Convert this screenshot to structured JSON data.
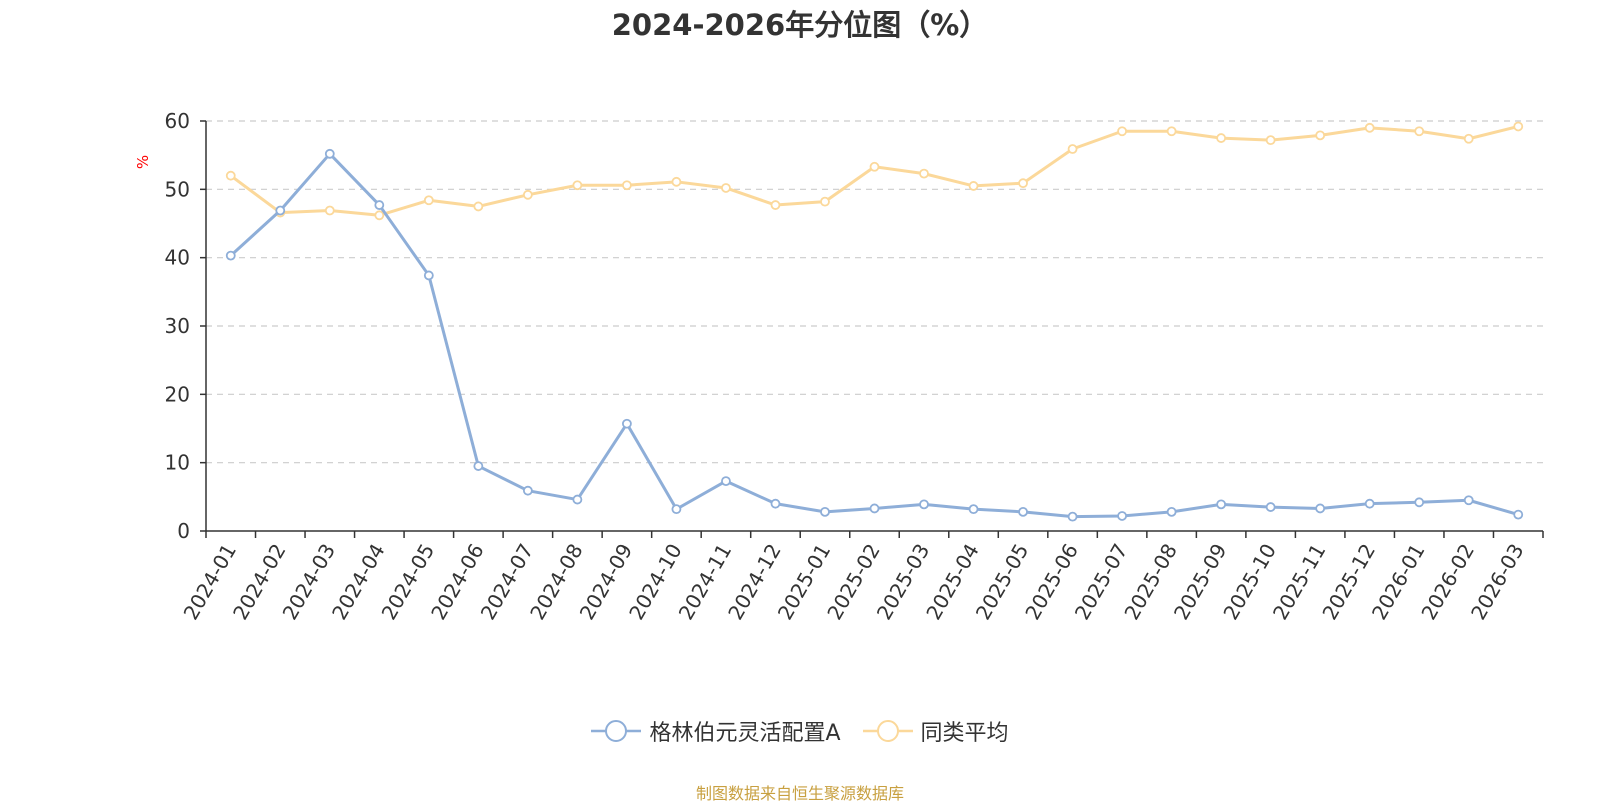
{
  "chart_data": {
    "type": "line",
    "title": "2024-2026年分位图（%）",
    "ylabel": "%",
    "xlabel": "",
    "ylim": [
      0,
      60
    ],
    "yticks": [
      0,
      10,
      20,
      30,
      40,
      50,
      60
    ],
    "grid": true,
    "legend_position": "bottom",
    "categories": [
      "2024-01",
      "2024-02",
      "2024-03",
      "2024-04",
      "2024-05",
      "2024-06",
      "2024-07",
      "2024-08",
      "2024-09",
      "2024-10",
      "2024-11",
      "2024-12",
      "2025-01",
      "2025-02",
      "2025-03",
      "2025-04",
      "2025-05",
      "2025-06",
      "2025-07",
      "2025-08",
      "2025-09",
      "2025-10",
      "2025-11",
      "2025-12",
      "2026-01",
      "2026-02",
      "2026-03"
    ],
    "series": [
      {
        "name": "格林伯元灵活配置A",
        "color": "#8eaed8",
        "values": [
          40.3,
          46.9,
          55.2,
          47.7,
          37.4,
          9.5,
          5.9,
          4.6,
          15.7,
          3.2,
          7.3,
          4.0,
          2.8,
          3.3,
          3.9,
          3.2,
          2.8,
          2.1,
          2.2,
          2.8,
          3.9,
          3.5,
          3.3,
          4.0,
          4.2,
          4.5,
          2.4
        ]
      },
      {
        "name": "同类平均",
        "color": "#fbd89a",
        "values": [
          52.0,
          46.6,
          46.9,
          46.2,
          48.4,
          47.5,
          49.2,
          50.6,
          50.6,
          51.1,
          50.2,
          47.7,
          48.2,
          53.3,
          52.3,
          50.5,
          50.9,
          55.9,
          58.5,
          58.5,
          57.5,
          57.2,
          57.9,
          59.0,
          58.5,
          57.4,
          59.2
        ]
      }
    ]
  },
  "footer": {
    "source": "制图数据来自恒生聚源数据库"
  }
}
